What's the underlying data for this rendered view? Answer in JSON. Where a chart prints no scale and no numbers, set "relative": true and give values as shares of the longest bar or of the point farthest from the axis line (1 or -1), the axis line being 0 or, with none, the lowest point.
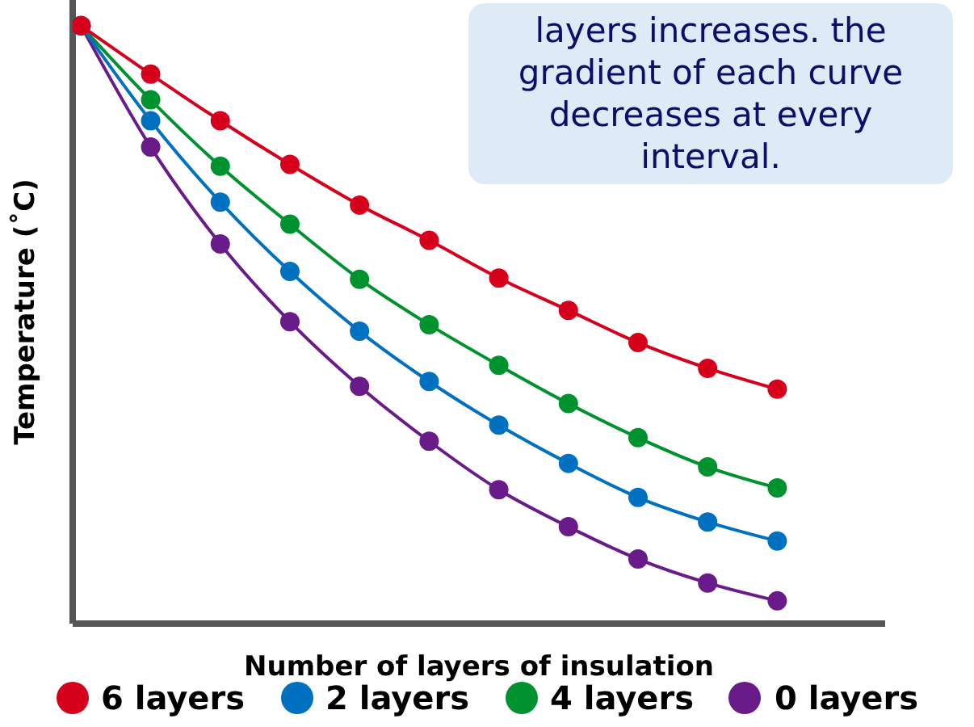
{
  "chart_data": {
    "type": "line",
    "relative": true,
    "xlabel": "Number of layers of insulation",
    "ylabel": "Temperature (˚C)",
    "annotations": [
      "layers increases. the gradient of each curve decreases at every interval."
    ],
    "categories": [
      null,
      null,
      null,
      null,
      null,
      null,
      null,
      null,
      null,
      null,
      null
    ],
    "series": [
      {
        "name": "6 layers",
        "color": "#d7001c",
        "values": [
          1,
          0.919,
          0.841,
          0.768,
          0.7,
          0.641,
          0.578,
          0.524,
          0.47,
          0.427,
          0.392
        ]
      },
      {
        "name": "2 layers",
        "color": "#0070c0",
        "values": [
          1,
          0.841,
          0.705,
          0.589,
          0.489,
          0.405,
          0.332,
          0.268,
          0.211,
          0.17,
          0.138
        ]
      },
      {
        "name": "4 layers",
        "color": "#00922e",
        "values": [
          1,
          0.876,
          0.765,
          0.668,
          0.576,
          0.5,
          0.432,
          0.368,
          0.311,
          0.262,
          0.227
        ]
      },
      {
        "name": "0 layers",
        "color": "#6a1b8a",
        "values": [
          1,
          0.797,
          0.635,
          0.505,
          0.397,
          0.305,
          0.224,
          0.162,
          0.108,
          0.068,
          0.038
        ]
      }
    ],
    "marker": "circle",
    "line_style": "solid",
    "grid": false,
    "legend": "bottom"
  }
}
